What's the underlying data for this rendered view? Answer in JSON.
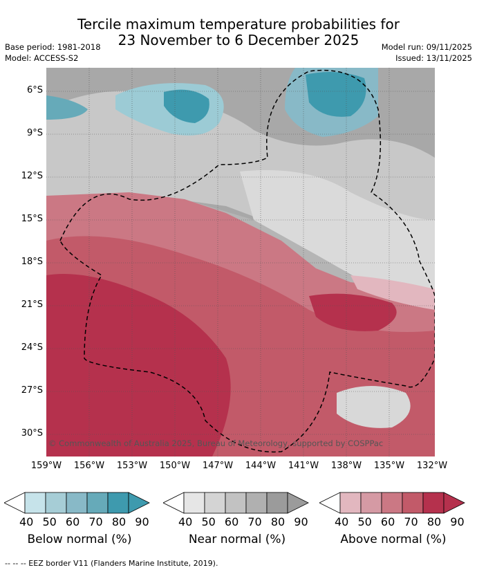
{
  "header": {
    "title_line1": "Tercile maximum temperature probabilities for",
    "title_line2": "23 November to 6 December 2025",
    "base_period": "Base period: 1981-2018",
    "model": "Model: ACCESS-S2",
    "model_run": "Model run: 09/11/2025",
    "issued": "Issued: 13/11/2025"
  },
  "map": {
    "lat_labels": [
      "6°S",
      "9°S",
      "12°S",
      "15°S",
      "18°S",
      "21°S",
      "24°S",
      "27°S",
      "30°S"
    ],
    "lon_labels": [
      "159°W",
      "156°W",
      "153°W",
      "150°W",
      "147°W",
      "144°W",
      "141°W",
      "138°W",
      "135°W",
      "132°W"
    ],
    "copyright": "© Commonwealth of Australia 2025, Bureau of Meteorology, supported by COSPPac"
  },
  "legend": {
    "below": {
      "title": "Below normal (%)",
      "ticks": [
        "40",
        "50",
        "60",
        "70",
        "80",
        "90"
      ],
      "colors": [
        "#ffffff",
        "#c6e3ea",
        "#a6cdd6",
        "#88b9c7",
        "#66aab9",
        "#3e9aae"
      ]
    },
    "near": {
      "title": "Near normal (%)",
      "ticks": [
        "40",
        "50",
        "60",
        "70",
        "80",
        "90"
      ],
      "colors": [
        "#ffffff",
        "#e6e6e6",
        "#d4d4d4",
        "#c2c2c2",
        "#b0b0b0",
        "#9b9b9b"
      ]
    },
    "above": {
      "title": "Above normal (%)",
      "ticks": [
        "40",
        "50",
        "60",
        "70",
        "80",
        "90"
      ],
      "colors": [
        "#ffffff",
        "#e2b7bf",
        "#d59aa4",
        "#cb7884",
        "#c25a69",
        "#b5314d"
      ]
    }
  },
  "footer": {
    "eez_note": "--  --  -- EEZ border V11 (Flanders Marine Institute, 2019)."
  }
}
